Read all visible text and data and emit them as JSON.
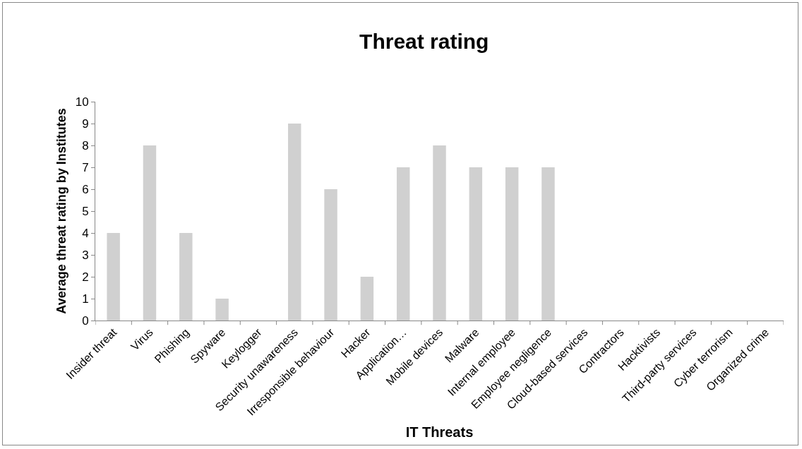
{
  "chart_data": {
    "type": "bar",
    "title": "Threat rating",
    "xlabel": "IT Threats",
    "ylabel": "Average threat rating by Institutes",
    "categories": [
      "Insider threat",
      "Virus",
      "Phishing",
      "Spyware",
      "Keylogger",
      "Security unawareness",
      "Irresponsible behaviour",
      "Hacker",
      "Application…",
      "Mobile devices",
      "Malware",
      "Internal employee",
      "Employee negligence",
      "Cloud-based services",
      "Contractors",
      "Hacktivists",
      "Third-party services",
      "Cyber terrorism",
      "Organized crime"
    ],
    "values": [
      4,
      8,
      4,
      1,
      0,
      9,
      6,
      2,
      7,
      8,
      7,
      7,
      7,
      0,
      0,
      0,
      0,
      0,
      0
    ],
    "color": "#d0d0d0",
    "ylim": [
      0,
      10
    ],
    "yticks": [
      0,
      1,
      2,
      3,
      4,
      5,
      6,
      7,
      8,
      9,
      10
    ],
    "grid": false
  }
}
